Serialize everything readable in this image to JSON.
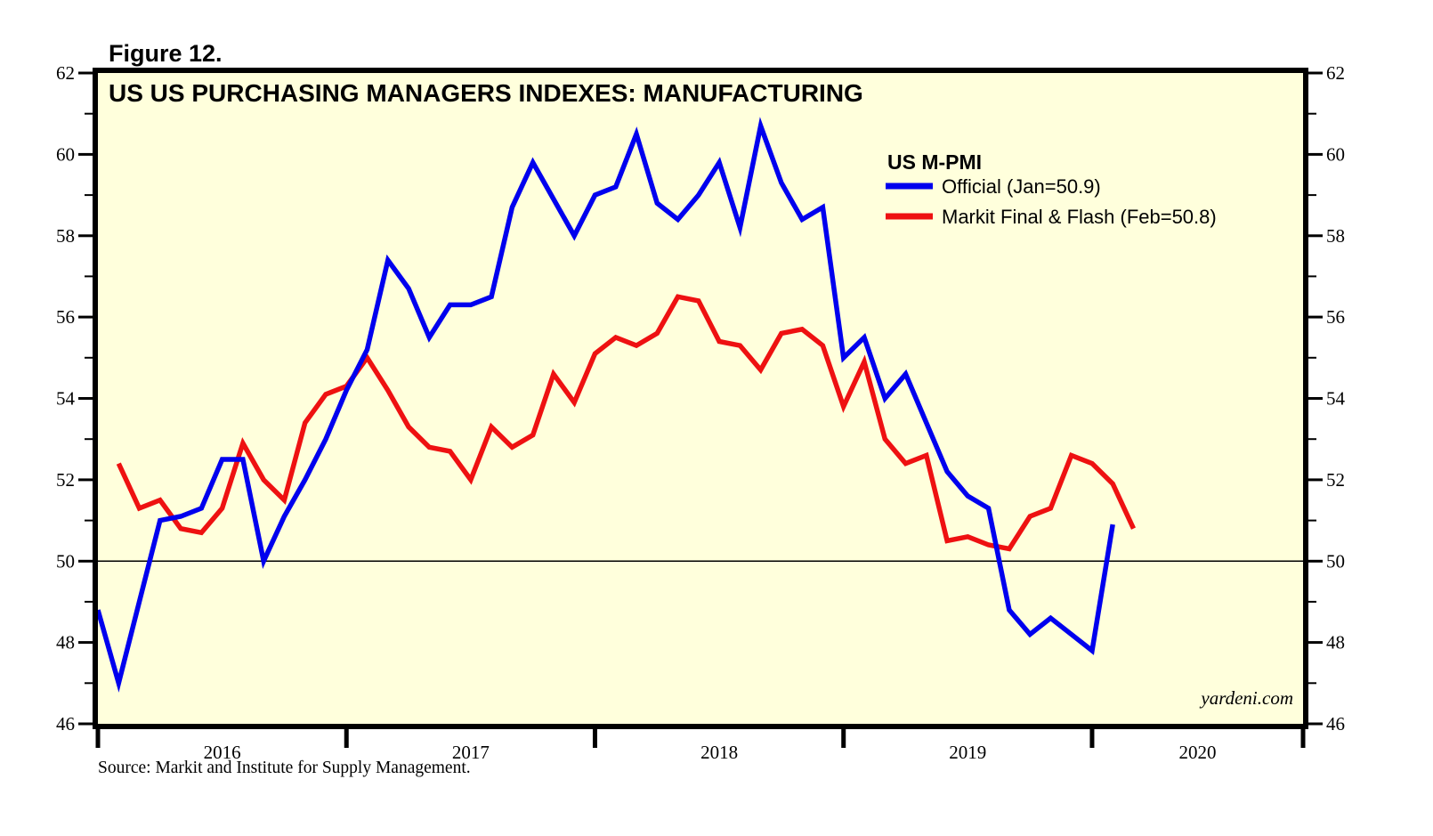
{
  "figure_label": "Figure 12.",
  "title": "US US PURCHASING MANAGERS INDEXES: MANUFACTURING",
  "watermark": "yardeni.com",
  "source_note": "Source: Markit and Institute for Supply Management.",
  "legend": {
    "heading": "US M-PMI",
    "entries": [
      {
        "label": "Official (Jan=50.9)",
        "color": "#0000ee"
      },
      {
        "label": "Markit Final & Flash (Feb=50.8)",
        "color": "#ee1111"
      }
    ]
  },
  "colors": {
    "plot_background": "#ffffdc",
    "axis": "#000000",
    "official_line": "#0000ee",
    "markit_line": "#ee1111"
  },
  "chart_data": {
    "type": "line",
    "title": "US US PURCHASING MANAGERS INDEXES: MANUFACTURING",
    "ylabel": "",
    "xlabel": "",
    "ylim": [
      46,
      62
    ],
    "y_major_step": 2,
    "y_minor_step": 1,
    "y_tick_labels": [
      "46",
      "48",
      "50",
      "52",
      "54",
      "56",
      "58",
      "60",
      "62"
    ],
    "y_labels_both_sides": true,
    "grid": false,
    "reference_line": 50,
    "legend_position": "upper-right-inside",
    "x_axis": {
      "unit": "month",
      "year_labels": [
        "2016",
        "2017",
        "2018",
        "2019",
        "2020"
      ],
      "months_per_year": 12
    },
    "series": [
      {
        "name": "Official (Jan=50.9)",
        "color": "#0000ee",
        "start_index": 0,
        "values": [
          48.8,
          47.0,
          49.0,
          51.0,
          51.1,
          51.3,
          52.5,
          52.5,
          50.0,
          51.1,
          52.0,
          53.0,
          54.2,
          55.2,
          57.4,
          56.7,
          55.5,
          56.3,
          56.3,
          56.5,
          58.7,
          59.8,
          58.9,
          58.0,
          59.0,
          59.2,
          60.5,
          58.8,
          58.4,
          59.0,
          59.8,
          58.2,
          60.7,
          59.3,
          58.4,
          58.7,
          55.0,
          55.5,
          54.0,
          54.6,
          53.4,
          52.2,
          51.6,
          51.3,
          48.8,
          48.2,
          48.6,
          48.2,
          47.8,
          50.9
        ]
      },
      {
        "name": "Markit Final & Flash (Feb=50.8)",
        "color": "#ee1111",
        "start_index": 1,
        "values": [
          52.4,
          51.3,
          51.5,
          50.8,
          50.7,
          51.3,
          52.9,
          52.0,
          51.5,
          53.4,
          54.1,
          54.3,
          55.0,
          54.2,
          53.3,
          52.8,
          52.7,
          52.0,
          53.3,
          52.8,
          53.1,
          54.6,
          53.9,
          55.1,
          55.5,
          55.3,
          55.6,
          56.5,
          56.4,
          55.4,
          55.3,
          54.7,
          55.6,
          55.7,
          55.3,
          53.8,
          54.9,
          53.0,
          52.4,
          52.6,
          50.5,
          50.6,
          50.4,
          50.3,
          51.1,
          51.3,
          52.6,
          52.4,
          51.9,
          50.8
        ]
      }
    ]
  }
}
